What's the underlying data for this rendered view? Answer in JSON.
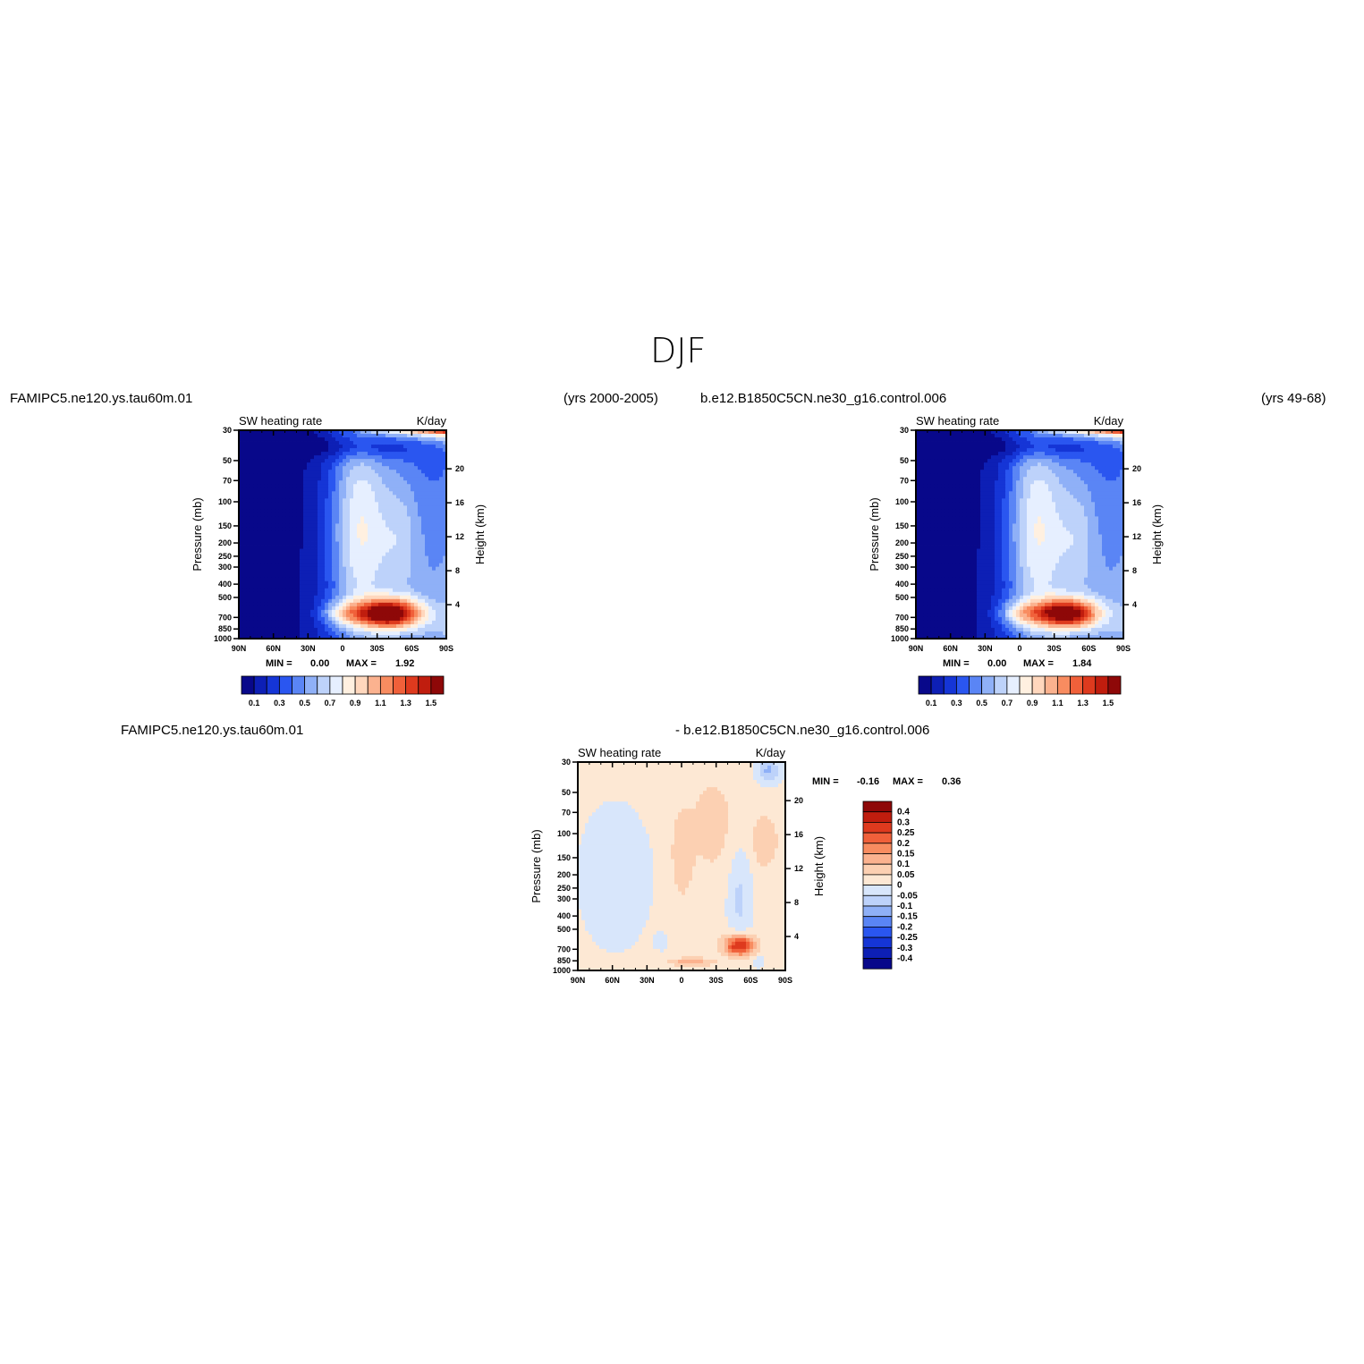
{
  "figure": {
    "title": "DJF",
    "left_case": "FAMIPC5.ne120.ys.tau60m.01",
    "left_years": "(yrs 2000-2005)",
    "right_case": "b.e12.B1850C5CN.ne30_g16.control.006",
    "right_years": "(yrs 49-68)",
    "diff_left_case": "FAMIPC5.ne120.ys.tau60m.01",
    "diff_right_case": "- b.e12.B1850C5CN.ne30_g16.control.006"
  },
  "colors": {
    "abs_palette": [
      "#08088a",
      "#0d1fb5",
      "#1535d6",
      "#2a56f0",
      "#5a85f5",
      "#8fb0f7",
      "#bdd2fa",
      "#e6efff",
      "#fff0e0",
      "#ffd7bd",
      "#fbb28f",
      "#f88c60",
      "#f0603a",
      "#de3a1e",
      "#c01d0e",
      "#8e0808"
    ],
    "diff_palette": [
      "#08088a",
      "#0d1fb5",
      "#1535d6",
      "#2a56f0",
      "#5a85f5",
      "#8fb0f7",
      "#bdd2fa",
      "#d8e6fb",
      "#fde8d4",
      "#fcd0b2",
      "#fbb28f",
      "#f88c60",
      "#f0603a",
      "#de3a1e",
      "#c01d0e",
      "#8e0808"
    ]
  },
  "chart_data": [
    {
      "type": "heatmap",
      "panel": "model",
      "title": "SW heating rate",
      "units": "K/day",
      "ylabel": "Pressure (mb)",
      "ylabel_right": "Height (km)",
      "x_ticks": [
        "90N",
        "60N",
        "30N",
        "0",
        "30S",
        "60S",
        "90S"
      ],
      "y_ticks": [
        30,
        50,
        70,
        100,
        150,
        200,
        250,
        300,
        400,
        500,
        700,
        850,
        1000
      ],
      "y_ticks_labels": [
        "30",
        "50",
        "70",
        "100",
        "150",
        "200",
        "250",
        "300",
        "400",
        "500",
        "700",
        "850",
        "1000"
      ],
      "height_ticks": [
        "20",
        "16",
        "12",
        "8",
        "4"
      ],
      "min_label": "MIN =",
      "min_value": "0.00",
      "max_label": "MAX =",
      "max_value": "1.92",
      "colorbar_labels": [
        "0.1",
        "0.3",
        "0.5",
        "0.7",
        "0.9",
        "1.1",
        "1.3",
        "1.5"
      ]
    },
    {
      "type": "heatmap",
      "panel": "control",
      "title": "SW heating rate",
      "units": "K/day",
      "ylabel": "Pressure (mb)",
      "ylabel_right": "Height (km)",
      "x_ticks": [
        "90N",
        "60N",
        "30N",
        "0",
        "30S",
        "60S",
        "90S"
      ],
      "y_ticks": [
        30,
        50,
        70,
        100,
        150,
        200,
        250,
        300,
        400,
        500,
        700,
        850,
        1000
      ],
      "y_ticks_labels": [
        "30",
        "50",
        "70",
        "100",
        "150",
        "200",
        "250",
        "300",
        "400",
        "500",
        "700",
        "850",
        "1000"
      ],
      "height_ticks": [
        "20",
        "16",
        "12",
        "8",
        "4"
      ],
      "min_label": "MIN =",
      "min_value": "0.00",
      "max_label": "MAX =",
      "max_value": "1.84",
      "colorbar_labels": [
        "0.1",
        "0.3",
        "0.5",
        "0.7",
        "0.9",
        "1.1",
        "1.3",
        "1.5"
      ]
    },
    {
      "type": "heatmap",
      "panel": "difference",
      "title": "SW heating rate",
      "units": "K/day",
      "ylabel": "Pressure (mb)",
      "ylabel_right": "Height (km)",
      "x_ticks": [
        "90N",
        "60N",
        "30N",
        "0",
        "30S",
        "60S",
        "90S"
      ],
      "y_ticks": [
        30,
        50,
        70,
        100,
        150,
        200,
        250,
        300,
        400,
        500,
        700,
        850,
        1000
      ],
      "y_ticks_labels": [
        "30",
        "50",
        "70",
        "100",
        "150",
        "200",
        "250",
        "300",
        "400",
        "500",
        "700",
        "850",
        "1000"
      ],
      "height_ticks": [
        "20",
        "16",
        "12",
        "8",
        "4"
      ],
      "min_label": "MIN =",
      "min_value": "-0.16",
      "max_label": "MAX =",
      "max_value": "0.36",
      "colorbar_labels": [
        "0.4",
        "0.3",
        "0.25",
        "0.2",
        "0.15",
        "0.1",
        "0.05",
        "0",
        "-0.05",
        "-0.1",
        "-0.15",
        "-0.2",
        "-0.25",
        "-0.3",
        "-0.4"
      ]
    }
  ]
}
